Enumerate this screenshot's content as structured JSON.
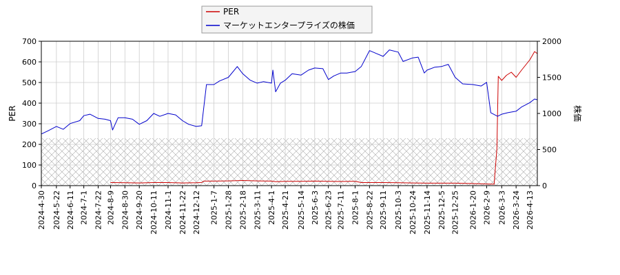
{
  "chart_data": {
    "type": "line",
    "ylabel_left": "PER",
    "ylabel_right": "株価",
    "ylim_left": [
      0,
      700
    ],
    "ylim_right": [
      0,
      2000
    ],
    "yticks_left": [
      "0",
      "100",
      "200",
      "300",
      "400",
      "500",
      "600",
      "700"
    ],
    "yticks_right": [
      "0",
      "500",
      "1000",
      "1500",
      "2000"
    ],
    "grid": true,
    "legend_position": "top-center",
    "hatched_band_max_per": 230,
    "xticks": [
      "2024-4-30",
      "2024-5-22",
      "2024-6-11",
      "2024-7-1",
      "2024-7-22",
      "2024-8-9",
      "2024-8-30",
      "2024-9-20",
      "2024-10-11",
      "2024-11-1",
      "2024-11-22",
      "2024-12-12",
      "2025-1-7",
      "2025-1-28",
      "2025-2-18",
      "2025-3-11",
      "2025-4-1",
      "2025-4-21",
      "2025-5-14",
      "2025-6-3",
      "2025-6-23",
      "2025-7-11",
      "2025-8-1",
      "2025-8-22",
      "2025-9-11",
      "2025-10-3",
      "2025-10-24",
      "2025-11-14",
      "2025-12-5",
      "2025-12-25",
      "2026-1-20",
      "2026-2-9",
      "2026-3-3",
      "2026-3-24",
      "2026-4-13"
    ],
    "x_range": [
      "2024-4-30",
      "2026-4-24"
    ],
    "series": [
      {
        "name": "PER",
        "color": "#cc0000",
        "axis": "left",
        "points": [
          [
            "2024-8-9",
            15
          ],
          [
            "2024-8-30",
            14
          ],
          [
            "2024-9-20",
            13
          ],
          [
            "2024-10-11",
            15
          ],
          [
            "2024-11-1",
            15
          ],
          [
            "2024-11-22",
            13
          ],
          [
            "2024-12-12",
            14
          ],
          [
            "2024-12-20",
            15
          ],
          [
            "2024-12-23",
            22
          ],
          [
            "2025-1-7",
            22
          ],
          [
            "2025-1-28",
            23
          ],
          [
            "2025-2-18",
            25
          ],
          [
            "2025-3-11",
            23
          ],
          [
            "2025-4-1",
            22
          ],
          [
            "2025-4-7",
            19
          ],
          [
            "2025-4-21",
            21
          ],
          [
            "2025-5-14",
            21
          ],
          [
            "2025-6-3",
            22
          ],
          [
            "2025-6-23",
            21
          ],
          [
            "2025-7-11",
            20
          ],
          [
            "2025-8-1",
            21
          ],
          [
            "2025-8-10",
            15
          ],
          [
            "2025-8-22",
            15
          ],
          [
            "2025-9-11",
            15
          ],
          [
            "2025-10-3",
            14
          ],
          [
            "2025-10-24",
            13
          ],
          [
            "2025-11-14",
            12
          ],
          [
            "2025-12-5",
            12
          ],
          [
            "2025-12-25",
            12
          ],
          [
            "2026-1-20",
            10
          ],
          [
            "2026-2-9",
            8
          ],
          [
            "2026-2-20",
            7
          ],
          [
            "2026-2-24",
            180
          ],
          [
            "2026-2-26",
            530
          ],
          [
            "2026-3-3",
            510
          ],
          [
            "2026-3-10",
            535
          ],
          [
            "2026-3-17",
            550
          ],
          [
            "2026-3-24",
            525
          ],
          [
            "2026-4-1",
            560
          ],
          [
            "2026-4-13",
            610
          ],
          [
            "2026-4-20",
            650
          ],
          [
            "2026-4-24",
            640
          ]
        ]
      },
      {
        "name": "マーケットエンタープライズの株価",
        "color": "#0000cc",
        "axis": "right",
        "points": [
          [
            "2024-4-30",
            715
          ],
          [
            "2024-5-10",
            760
          ],
          [
            "2024-5-22",
            820
          ],
          [
            "2024-6-1",
            780
          ],
          [
            "2024-6-11",
            860
          ],
          [
            "2024-6-25",
            900
          ],
          [
            "2024-7-1",
            970
          ],
          [
            "2024-7-10",
            990
          ],
          [
            "2024-7-22",
            930
          ],
          [
            "2024-8-1",
            920
          ],
          [
            "2024-8-9",
            900
          ],
          [
            "2024-8-12",
            770
          ],
          [
            "2024-8-20",
            940
          ],
          [
            "2024-8-30",
            940
          ],
          [
            "2024-9-10",
            920
          ],
          [
            "2024-9-20",
            850
          ],
          [
            "2024-10-1",
            900
          ],
          [
            "2024-10-11",
            1000
          ],
          [
            "2024-10-20",
            960
          ],
          [
            "2024-11-1",
            1000
          ],
          [
            "2024-11-12",
            980
          ],
          [
            "2024-11-22",
            900
          ],
          [
            "2024-12-1",
            850
          ],
          [
            "2024-12-12",
            820
          ],
          [
            "2024-12-20",
            830
          ],
          [
            "2024-12-27",
            1400
          ],
          [
            "2025-1-7",
            1400
          ],
          [
            "2025-1-15",
            1450
          ],
          [
            "2025-1-28",
            1500
          ],
          [
            "2025-2-10",
            1650
          ],
          [
            "2025-2-18",
            1550
          ],
          [
            "2025-3-1",
            1460
          ],
          [
            "2025-3-11",
            1420
          ],
          [
            "2025-3-20",
            1440
          ],
          [
            "2025-4-1",
            1420
          ],
          [
            "2025-4-3",
            1600
          ],
          [
            "2025-4-7",
            1300
          ],
          [
            "2025-4-14",
            1420
          ],
          [
            "2025-4-21",
            1460
          ],
          [
            "2025-5-1",
            1550
          ],
          [
            "2025-5-14",
            1530
          ],
          [
            "2025-5-25",
            1600
          ],
          [
            "2025-6-3",
            1630
          ],
          [
            "2025-6-15",
            1620
          ],
          [
            "2025-6-23",
            1470
          ],
          [
            "2025-7-1",
            1520
          ],
          [
            "2025-7-11",
            1560
          ],
          [
            "2025-7-20",
            1560
          ],
          [
            "2025-8-1",
            1580
          ],
          [
            "2025-8-10",
            1650
          ],
          [
            "2025-8-22",
            1870
          ],
          [
            "2025-9-1",
            1830
          ],
          [
            "2025-9-11",
            1790
          ],
          [
            "2025-9-20",
            1880
          ],
          [
            "2025-10-3",
            1850
          ],
          [
            "2025-10-10",
            1720
          ],
          [
            "2025-10-24",
            1770
          ],
          [
            "2025-11-1",
            1780
          ],
          [
            "2025-11-10",
            1560
          ],
          [
            "2025-11-14",
            1600
          ],
          [
            "2025-11-25",
            1640
          ],
          [
            "2025-12-5",
            1650
          ],
          [
            "2025-12-15",
            1680
          ],
          [
            "2025-12-25",
            1500
          ],
          [
            "2026-1-5",
            1410
          ],
          [
            "2026-1-20",
            1400
          ],
          [
            "2026-2-1",
            1380
          ],
          [
            "2026-2-9",
            1430
          ],
          [
            "2026-2-15",
            1010
          ],
          [
            "2026-2-25",
            960
          ],
          [
            "2026-3-3",
            990
          ],
          [
            "2026-3-12",
            1010
          ],
          [
            "2026-3-24",
            1030
          ],
          [
            "2026-4-1",
            1090
          ],
          [
            "2026-4-13",
            1150
          ],
          [
            "2026-4-20",
            1200
          ],
          [
            "2026-4-24",
            1190
          ]
        ]
      }
    ]
  }
}
